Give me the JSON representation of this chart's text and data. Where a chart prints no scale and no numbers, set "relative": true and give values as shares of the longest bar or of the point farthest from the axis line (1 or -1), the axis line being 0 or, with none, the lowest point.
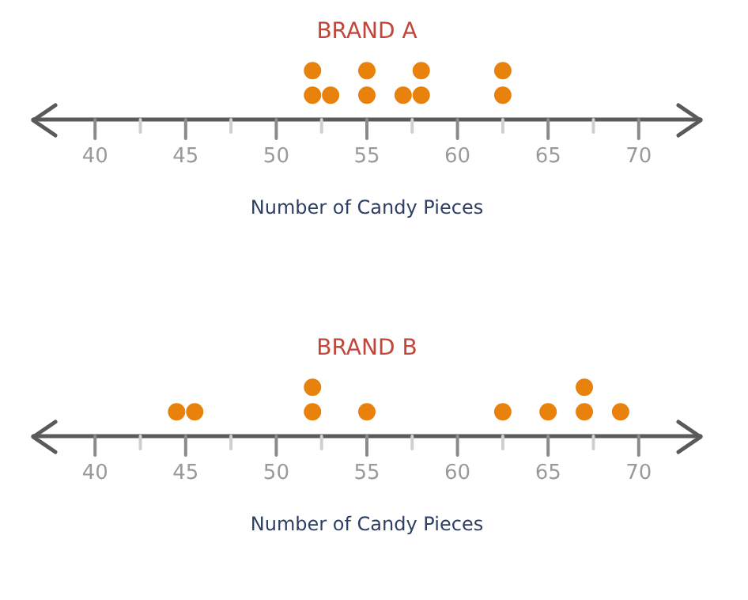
{
  "chart_data": [
    {
      "type": "scatter",
      "title": "BRAND A",
      "xlabel": "Number of Candy Pieces",
      "relative": true,
      "marker": "circle",
      "grid": false,
      "color": "#e8820c",
      "x": [
        52,
        52,
        53,
        55,
        55,
        57,
        58,
        58,
        62.5,
        62.5
      ],
      "values": [
        0.5,
        1,
        0.5,
        0.5,
        1,
        0.5,
        0.5,
        1,
        0.5,
        1
      ],
      "xlim": [
        36.5,
        73.5
      ],
      "xticks": [
        40,
        {
          "value": 42.5,
          "label": null
        },
        45,
        {
          "value": 47.5,
          "label": null
        },
        50,
        {
          "value": 52.5,
          "label": null
        },
        55,
        {
          "value": 57.5,
          "label": null
        },
        60,
        {
          "value": 62.5,
          "label": null
        },
        65,
        {
          "value": 67.5,
          "label": null
        },
        70
      ]
    },
    {
      "type": "scatter",
      "title": "BRAND B",
      "xlabel": "Number of Candy Pieces",
      "relative": true,
      "marker": "circle",
      "grid": false,
      "color": "#e8820c",
      "x": [
        44.5,
        45.5,
        52,
        52,
        55,
        62.5,
        65,
        67,
        67,
        69
      ],
      "values": [
        0.5,
        0.5,
        0.5,
        1,
        0.5,
        0.5,
        0.5,
        0.5,
        1,
        0.5
      ],
      "xlim": [
        36.5,
        73.5
      ],
      "xticks": [
        40,
        {
          "value": 42.5,
          "label": null
        },
        45,
        {
          "value": 47.5,
          "label": null
        },
        50,
        {
          "value": 52.5,
          "label": null
        },
        55,
        {
          "value": 57.5,
          "label": null
        },
        60,
        {
          "value": 62.5,
          "label": null
        },
        65,
        {
          "value": 67.5,
          "label": null
        },
        70
      ]
    }
  ]
}
